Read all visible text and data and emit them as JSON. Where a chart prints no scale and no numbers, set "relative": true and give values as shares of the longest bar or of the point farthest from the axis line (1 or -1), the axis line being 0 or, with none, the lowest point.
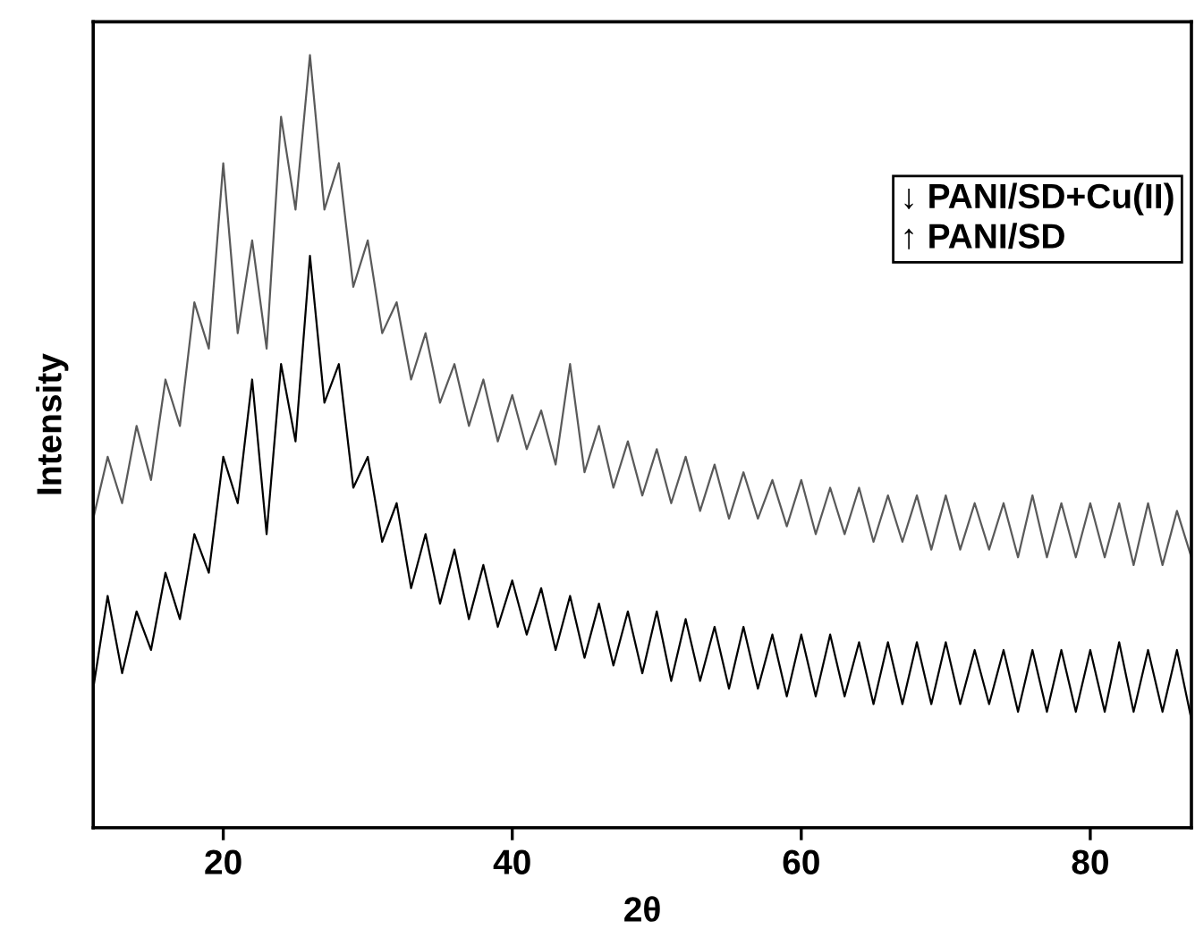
{
  "chart_data": {
    "type": "line",
    "relative": true,
    "xlabel": "2θ",
    "ylabel": "Intensity",
    "x": [
      11,
      12,
      13,
      14,
      15,
      16,
      17,
      18,
      19,
      20,
      21,
      22,
      23,
      24,
      25,
      26,
      27,
      28,
      29,
      30,
      31,
      32,
      33,
      34,
      35,
      36,
      37,
      38,
      39,
      40,
      41,
      42,
      43,
      44,
      45,
      46,
      47,
      48,
      49,
      50,
      51,
      52,
      53,
      54,
      55,
      56,
      57,
      58,
      59,
      60,
      61,
      62,
      63,
      64,
      65,
      66,
      67,
      68,
      69,
      70,
      71,
      72,
      73,
      74,
      75,
      76,
      77,
      78,
      79,
      80,
      81,
      82,
      83,
      84,
      85,
      86,
      87
    ],
    "series": [
      {
        "color": "#5a5a5a",
        "values": [
          0.4,
          0.48,
          0.42,
          0.52,
          0.45,
          0.58,
          0.52,
          0.68,
          0.62,
          0.86,
          0.64,
          0.76,
          0.62,
          0.92,
          0.8,
          1.0,
          0.8,
          0.86,
          0.7,
          0.76,
          0.64,
          0.68,
          0.58,
          0.64,
          0.55,
          0.6,
          0.52,
          0.58,
          0.5,
          0.56,
          0.49,
          0.54,
          0.47,
          0.6,
          0.46,
          0.52,
          0.44,
          0.5,
          0.43,
          0.49,
          0.42,
          0.48,
          0.41,
          0.47,
          0.4,
          0.46,
          0.4,
          0.45,
          0.39,
          0.45,
          0.38,
          0.44,
          0.38,
          0.44,
          0.37,
          0.43,
          0.37,
          0.43,
          0.36,
          0.43,
          0.36,
          0.42,
          0.36,
          0.42,
          0.35,
          0.43,
          0.35,
          0.42,
          0.35,
          0.42,
          0.35,
          0.42,
          0.34,
          0.42,
          0.34,
          0.41,
          0.35
        ]
      },
      {
        "color": "#000000",
        "values": [
          0.18,
          0.3,
          0.2,
          0.28,
          0.23,
          0.33,
          0.27,
          0.38,
          0.33,
          0.48,
          0.42,
          0.58,
          0.38,
          0.6,
          0.5,
          0.74,
          0.55,
          0.6,
          0.44,
          0.48,
          0.37,
          0.42,
          0.31,
          0.38,
          0.29,
          0.36,
          0.27,
          0.34,
          0.26,
          0.32,
          0.25,
          0.31,
          0.23,
          0.3,
          0.22,
          0.29,
          0.21,
          0.28,
          0.2,
          0.28,
          0.19,
          0.27,
          0.19,
          0.26,
          0.18,
          0.26,
          0.18,
          0.25,
          0.17,
          0.25,
          0.17,
          0.25,
          0.17,
          0.24,
          0.16,
          0.24,
          0.16,
          0.24,
          0.16,
          0.24,
          0.16,
          0.23,
          0.16,
          0.23,
          0.15,
          0.23,
          0.15,
          0.23,
          0.15,
          0.23,
          0.15,
          0.24,
          0.15,
          0.23,
          0.15,
          0.23,
          0.14
        ]
      }
    ],
    "xlim": [
      11,
      87
    ],
    "xticks": [
      20,
      40,
      60,
      80
    ],
    "tick_labels": "x",
    "grid": false,
    "legend": false,
    "annotations": [
      "↓ PANI/SD+Cu(II)",
      "↑ PANI/SD"
    ]
  }
}
